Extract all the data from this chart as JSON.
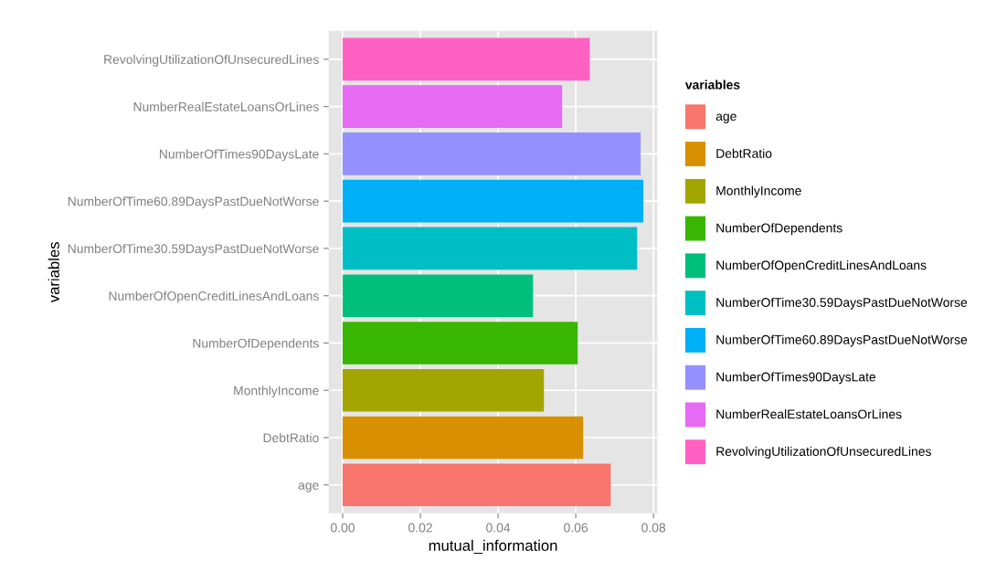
{
  "chart_data": {
    "type": "bar",
    "orientation": "horizontal",
    "xlabel": "mutual_information",
    "ylabel": "variables",
    "legend_title": "variables",
    "legend": "right",
    "categories": [
      "RevolvingUtilizationOfUnsecuredLines",
      "NumberRealEstateLoansOrLines",
      "NumberOfTimes90DaysLate",
      "NumberOfTime60.89DaysPastDueNotWorse",
      "NumberOfTime30.59DaysPastDueNotWorse",
      "NumberOfOpenCreditLinesAndLoans",
      "NumberOfDependents",
      "MonthlyIncome",
      "DebtRatio",
      "age"
    ],
    "series": [
      {
        "name": "age",
        "color": "#f8766d",
        "values": [
          null,
          null,
          null,
          null,
          null,
          null,
          null,
          null,
          null,
          0.069
        ]
      },
      {
        "name": "DebtRatio",
        "color": "#d89000",
        "values": [
          null,
          null,
          null,
          null,
          null,
          null,
          null,
          null,
          0.0619,
          null
        ]
      },
      {
        "name": "MonthlyIncome",
        "color": "#a3a500",
        "values": [
          null,
          null,
          null,
          null,
          null,
          null,
          null,
          0.0518,
          null,
          null
        ]
      },
      {
        "name": "NumberOfDependents",
        "color": "#39b600",
        "values": [
          null,
          null,
          null,
          null,
          null,
          null,
          0.0605,
          null,
          null,
          null
        ]
      },
      {
        "name": "NumberOfOpenCreditLinesAndLoans",
        "color": "#00bf7d",
        "values": [
          null,
          null,
          null,
          null,
          null,
          0.049,
          null,
          null,
          null,
          null
        ]
      },
      {
        "name": "NumberOfTime30.59DaysPastDueNotWorse",
        "color": "#00bfc4",
        "values": [
          null,
          null,
          null,
          null,
          0.0758,
          null,
          null,
          null,
          null,
          null
        ]
      },
      {
        "name": "NumberOfTime60.89DaysPastDueNotWorse",
        "color": "#00b0f6",
        "values": [
          null,
          null,
          null,
          0.0774,
          null,
          null,
          null,
          null,
          null,
          null
        ]
      },
      {
        "name": "NumberOfTimes90DaysLate",
        "color": "#9590ff",
        "values": [
          null,
          null,
          0.0767,
          null,
          null,
          null,
          null,
          null,
          null,
          null
        ]
      },
      {
        "name": "NumberRealEstateLoansOrLines",
        "color": "#e66bf3",
        "values": [
          null,
          0.0565,
          null,
          null,
          null,
          null,
          null,
          null,
          null,
          null
        ]
      },
      {
        "name": "RevolvingUtilizationOfUnsecuredLines",
        "color": "#ff61c3",
        "values": [
          0.0636,
          null,
          null,
          null,
          null,
          null,
          null,
          null,
          null,
          null
        ]
      }
    ],
    "xlim": [
      -0.0036,
      0.081
    ],
    "xticks": [
      {
        "value": 0,
        "label": "0.00"
      },
      {
        "value": 0.02,
        "label": "0.02"
      },
      {
        "value": 0.04,
        "label": "0.04"
      },
      {
        "value": 0.06,
        "label": "0.06"
      },
      {
        "value": 0.08,
        "label": "0.08"
      }
    ],
    "grid": true
  }
}
